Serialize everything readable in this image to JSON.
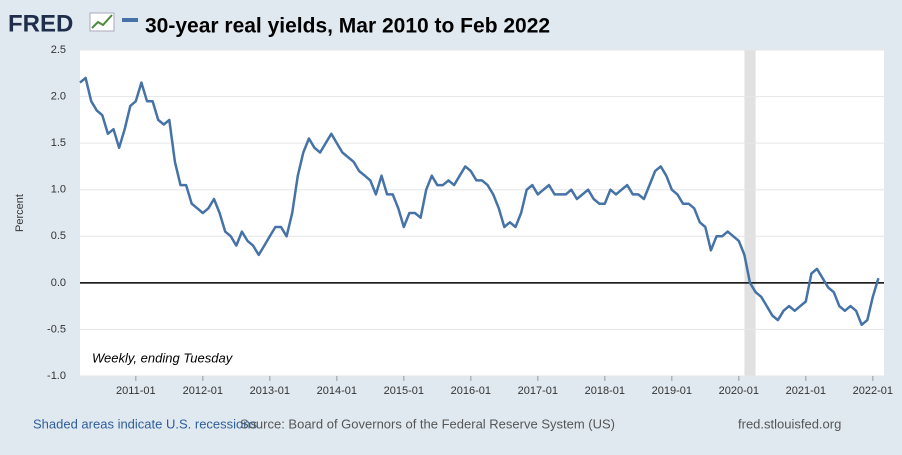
{
  "logo": "FRED",
  "chart_data": {
    "type": "line",
    "title": "30-year real yields, Mar 2010 to Feb 2022",
    "y_label": "Percent",
    "annotation": "Weekly, ending Tuesday",
    "footer_left": "Shaded areas indicate U.S. recessions",
    "footer_center": "Source: Board of Governors of the Federal Reserve System (US)",
    "footer_right": "fred.stlouisfed.org",
    "color": "#4572a7",
    "recession": [
      "2020-02",
      "2020-04"
    ],
    "xlim": [
      "2010-03",
      "2022-03"
    ],
    "xticks": [
      "2011-01",
      "2012-01",
      "2013-01",
      "2014-01",
      "2015-01",
      "2016-01",
      "2017-01",
      "2018-01",
      "2019-01",
      "2020-01",
      "2021-01",
      "2022-01"
    ],
    "ylim": [
      -1,
      2.5
    ],
    "yticks": [
      {
        "value": -1,
        "label": "-1.0"
      },
      -0.5,
      {
        "value": 0,
        "label": "0.0"
      },
      0.5,
      {
        "value": 1,
        "label": "1.0"
      },
      1.5,
      {
        "value": 2,
        "label": "2.0"
      },
      2.5
    ],
    "grid": true,
    "x": [
      "2010-03",
      "2010-04",
      "2010-05",
      "2010-06",
      "2010-07",
      "2010-08",
      "2010-09",
      "2010-10",
      "2010-11",
      "2010-12",
      "2011-01",
      "2011-02",
      "2011-03",
      "2011-04",
      "2011-05",
      "2011-06",
      "2011-07",
      "2011-08",
      "2011-09",
      "2011-10",
      "2011-11",
      "2011-12",
      "2012-01",
      "2012-02",
      "2012-03",
      "2012-04",
      "2012-05",
      "2012-06",
      "2012-07",
      "2012-08",
      "2012-09",
      "2012-10",
      "2012-11",
      "2012-12",
      "2013-01",
      "2013-02",
      "2013-03",
      "2013-04",
      "2013-05",
      "2013-06",
      "2013-07",
      "2013-08",
      "2013-09",
      "2013-10",
      "2013-11",
      "2013-12",
      "2014-01",
      "2014-02",
      "2014-03",
      "2014-04",
      "2014-05",
      "2014-06",
      "2014-07",
      "2014-08",
      "2014-09",
      "2014-10",
      "2014-11",
      "2014-12",
      "2015-01",
      "2015-02",
      "2015-03",
      "2015-04",
      "2015-05",
      "2015-06",
      "2015-07",
      "2015-08",
      "2015-09",
      "2015-10",
      "2015-11",
      "2015-12",
      "2016-01",
      "2016-02",
      "2016-03",
      "2016-04",
      "2016-05",
      "2016-06",
      "2016-07",
      "2016-08",
      "2016-09",
      "2016-10",
      "2016-11",
      "2016-12",
      "2017-01",
      "2017-02",
      "2017-03",
      "2017-04",
      "2017-05",
      "2017-06",
      "2017-07",
      "2017-08",
      "2017-09",
      "2017-10",
      "2017-11",
      "2017-12",
      "2018-01",
      "2018-02",
      "2018-03",
      "2018-04",
      "2018-05",
      "2018-06",
      "2018-07",
      "2018-08",
      "2018-09",
      "2018-10",
      "2018-11",
      "2018-12",
      "2019-01",
      "2019-02",
      "2019-03",
      "2019-04",
      "2019-05",
      "2019-06",
      "2019-07",
      "2019-08",
      "2019-09",
      "2019-10",
      "2019-11",
      "2019-12",
      "2020-01",
      "2020-02",
      "2020-03",
      "2020-04",
      "2020-05",
      "2020-06",
      "2020-07",
      "2020-08",
      "2020-09",
      "2020-10",
      "2020-11",
      "2020-12",
      "2021-01",
      "2021-02",
      "2021-03",
      "2021-04",
      "2021-05",
      "2021-06",
      "2021-07",
      "2021-08",
      "2021-09",
      "2021-10",
      "2021-11",
      "2021-12",
      "2022-01",
      "2022-02"
    ],
    "values": [
      2.15,
      2.2,
      1.95,
      1.85,
      1.8,
      1.6,
      1.65,
      1.45,
      1.65,
      1.9,
      1.95,
      2.15,
      1.95,
      1.95,
      1.75,
      1.7,
      1.75,
      1.3,
      1.05,
      1.05,
      0.85,
      0.8,
      0.75,
      0.8,
      0.9,
      0.75,
      0.55,
      0.5,
      0.4,
      0.55,
      0.45,
      0.4,
      0.3,
      0.4,
      0.5,
      0.6,
      0.6,
      0.5,
      0.75,
      1.15,
      1.4,
      1.55,
      1.45,
      1.4,
      1.5,
      1.6,
      1.5,
      1.4,
      1.35,
      1.3,
      1.2,
      1.15,
      1.1,
      0.95,
      1.15,
      0.95,
      0.95,
      0.8,
      0.6,
      0.75,
      0.75,
      0.7,
      1.0,
      1.15,
      1.05,
      1.05,
      1.1,
      1.05,
      1.15,
      1.25,
      1.2,
      1.1,
      1.1,
      1.05,
      0.95,
      0.8,
      0.6,
      0.65,
      0.6,
      0.75,
      1.0,
      1.05,
      0.95,
      1.0,
      1.05,
      0.95,
      0.95,
      0.95,
      1.0,
      0.9,
      0.95,
      1.0,
      0.9,
      0.85,
      0.85,
      1.0,
      0.95,
      1.0,
      1.05,
      0.95,
      0.95,
      0.9,
      1.05,
      1.2,
      1.25,
      1.15,
      1.0,
      0.95,
      0.85,
      0.85,
      0.8,
      0.65,
      0.6,
      0.35,
      0.5,
      0.5,
      0.55,
      0.5,
      0.45,
      0.3,
      0.0,
      -0.1,
      -0.15,
      -0.25,
      -0.35,
      -0.4,
      -0.3,
      -0.25,
      -0.3,
      -0.25,
      -0.2,
      0.1,
      0.15,
      0.05,
      -0.05,
      -0.1,
      -0.25,
      -0.3,
      -0.25,
      -0.3,
      -0.45,
      -0.4,
      -0.15,
      0.05
    ]
  }
}
